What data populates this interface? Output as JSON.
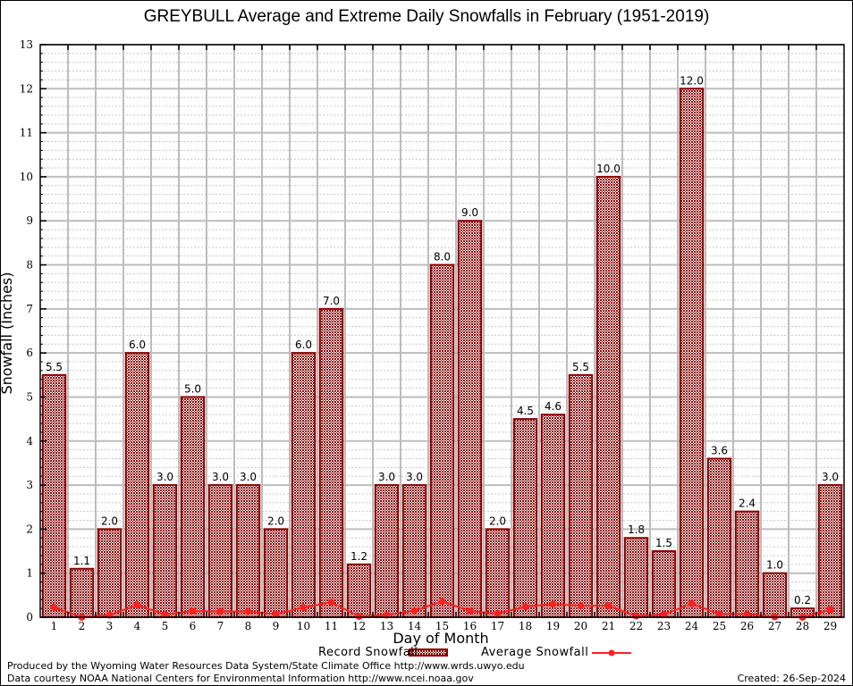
{
  "chart_data": {
    "type": "bar",
    "title": "GREYBULL Average and Extreme Daily Snowfalls in February (1951-2019)",
    "xlabel": "Day of Month",
    "ylabel": "Snowfall (Inches)",
    "ylim": [
      0,
      13
    ],
    "yticks": [
      0,
      1,
      2,
      3,
      4,
      5,
      6,
      7,
      8,
      9,
      10,
      11,
      12,
      13
    ],
    "grid": true,
    "legend_position": "bottom-center",
    "categories": [
      "1",
      "2",
      "3",
      "4",
      "5",
      "6",
      "7",
      "8",
      "9",
      "10",
      "11",
      "12",
      "13",
      "14",
      "15",
      "16",
      "17",
      "18",
      "19",
      "20",
      "21",
      "22",
      "23",
      "24",
      "25",
      "26",
      "27",
      "28",
      "29"
    ],
    "series": [
      {
        "name": "Record Snowfall",
        "type": "bar",
        "color": "#8b0000",
        "values": [
          5.5,
          1.1,
          2.0,
          6.0,
          3.0,
          5.0,
          3.0,
          3.0,
          2.0,
          6.0,
          7.0,
          1.2,
          3.0,
          3.0,
          8.0,
          9.0,
          2.0,
          4.5,
          4.6,
          5.5,
          10.0,
          1.8,
          1.5,
          12.0,
          3.6,
          2.4,
          1.0,
          0.2,
          3.0
        ],
        "labels": [
          "5.5",
          "1.1",
          "2.0",
          "6.0",
          "3.0",
          "5.0",
          "3.0",
          "3.0",
          "2.0",
          "6.0",
          "7.0",
          "1.2",
          "3.0",
          "3.0",
          "8.0",
          "9.0",
          "2.0",
          "4.5",
          "4.6",
          "5.5",
          "10.0",
          "1.8",
          "1.5",
          "12.0",
          "3.6",
          "2.4",
          "1.0",
          "0.2",
          "3.0"
        ]
      },
      {
        "name": "Average Snowfall",
        "type": "line",
        "color": "#ff2020",
        "values": [
          0.22,
          0.0,
          0.05,
          0.28,
          0.06,
          0.14,
          0.13,
          0.13,
          0.07,
          0.22,
          0.34,
          0.02,
          0.05,
          0.15,
          0.36,
          0.14,
          0.08,
          0.24,
          0.3,
          0.26,
          0.26,
          0.03,
          0.06,
          0.31,
          0.07,
          0.07,
          0.01,
          0.0,
          0.17
        ]
      }
    ]
  },
  "footer": {
    "line1": "Produced by the Wyoming Water Resources Data System/State Climate Office http://www.wrds.uwyo.edu",
    "line2": "Data courtesy NOAA National Centers for Environmental Information http://www.ncei.noaa.gov",
    "created": "Created: 26-Sep-2024"
  }
}
